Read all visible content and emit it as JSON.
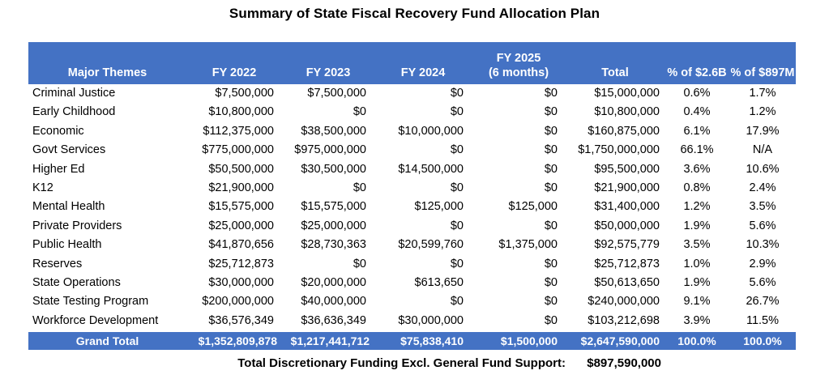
{
  "title": "Summary of State Fiscal Recovery Fund Allocation Plan",
  "colors": {
    "header_blue": "#4472C4",
    "header_text": "#FFFFFF",
    "body_text": "#000000",
    "background": "#FFFFFF"
  },
  "header": {
    "major_themes": "Major Themes",
    "fy2022": "FY 2022",
    "fy2023": "FY 2023",
    "fy2024": "FY 2024",
    "fy2025_line1": "FY 2025",
    "fy2025_line2": "(6 months)",
    "total": "Total",
    "pct_2_6b": "% of $2.6B",
    "pct_897m": "% of $897M"
  },
  "rows": [
    {
      "theme": "Criminal Justice",
      "fy2022": "$7,500,000",
      "fy2023": "$7,500,000",
      "fy2024": "$0",
      "fy2025": "$0",
      "total": "$15,000,000",
      "pct_2_6b": "0.6%",
      "pct_897m": "1.7%"
    },
    {
      "theme": "Early Childhood",
      "fy2022": "$10,800,000",
      "fy2023": "$0",
      "fy2024": "$0",
      "fy2025": "$0",
      "total": "$10,800,000",
      "pct_2_6b": "0.4%",
      "pct_897m": "1.2%"
    },
    {
      "theme": "Economic",
      "fy2022": "$112,375,000",
      "fy2023": "$38,500,000",
      "fy2024": "$10,000,000",
      "fy2025": "$0",
      "total": "$160,875,000",
      "pct_2_6b": "6.1%",
      "pct_897m": "17.9%"
    },
    {
      "theme": "Govt Services",
      "fy2022": "$775,000,000",
      "fy2023": "$975,000,000",
      "fy2024": "$0",
      "fy2025": "$0",
      "total": "$1,750,000,000",
      "pct_2_6b": "66.1%",
      "pct_897m": "N/A"
    },
    {
      "theme": "Higher Ed",
      "fy2022": "$50,500,000",
      "fy2023": "$30,500,000",
      "fy2024": "$14,500,000",
      "fy2025": "$0",
      "total": "$95,500,000",
      "pct_2_6b": "3.6%",
      "pct_897m": "10.6%"
    },
    {
      "theme": "K12",
      "fy2022": "$21,900,000",
      "fy2023": "$0",
      "fy2024": "$0",
      "fy2025": "$0",
      "total": "$21,900,000",
      "pct_2_6b": "0.8%",
      "pct_897m": "2.4%"
    },
    {
      "theme": "Mental Health",
      "fy2022": "$15,575,000",
      "fy2023": "$15,575,000",
      "fy2024": "$125,000",
      "fy2025": "$125,000",
      "total": "$31,400,000",
      "pct_2_6b": "1.2%",
      "pct_897m": "3.5%"
    },
    {
      "theme": "Private Providers",
      "fy2022": "$25,000,000",
      "fy2023": "$25,000,000",
      "fy2024": "$0",
      "fy2025": "$0",
      "total": "$50,000,000",
      "pct_2_6b": "1.9%",
      "pct_897m": "5.6%"
    },
    {
      "theme": "Public Health",
      "fy2022": "$41,870,656",
      "fy2023": "$28,730,363",
      "fy2024": "$20,599,760",
      "fy2025": "$1,375,000",
      "total": "$92,575,779",
      "pct_2_6b": "3.5%",
      "pct_897m": "10.3%"
    },
    {
      "theme": "Reserves",
      "fy2022": "$25,712,873",
      "fy2023": "$0",
      "fy2024": "$0",
      "fy2025": "$0",
      "total": "$25,712,873",
      "pct_2_6b": "1.0%",
      "pct_897m": "2.9%"
    },
    {
      "theme": "State Operations",
      "fy2022": "$30,000,000",
      "fy2023": "$20,000,000",
      "fy2024": "$613,650",
      "fy2025": "$0",
      "total": "$50,613,650",
      "pct_2_6b": "1.9%",
      "pct_897m": "5.6%"
    },
    {
      "theme": "State Testing Program",
      "fy2022": "$200,000,000",
      "fy2023": "$40,000,000",
      "fy2024": "$0",
      "fy2025": "$0",
      "total": "$240,000,000",
      "pct_2_6b": "9.1%",
      "pct_897m": "26.7%"
    },
    {
      "theme": "Workforce Development",
      "fy2022": "$36,576,349",
      "fy2023": "$36,636,349",
      "fy2024": "$30,000,000",
      "fy2025": "$0",
      "total": "$103,212,698",
      "pct_2_6b": "3.9%",
      "pct_897m": "11.5%"
    }
  ],
  "grand_total": {
    "label": "Grand Total",
    "fy2022": "$1,352,809,878",
    "fy2023": "$1,217,441,712",
    "fy2024": "$75,838,410",
    "fy2025": "$1,500,000",
    "total": "$2,647,590,000",
    "pct_2_6b": "100.0%",
    "pct_897m": "100.0%"
  },
  "footer": {
    "label": "Total Discretionary Funding Excl. General Fund Support:",
    "value": "$897,590,000"
  },
  "chart_data": {
    "type": "table",
    "title": "Summary of State Fiscal Recovery Fund Allocation Plan",
    "columns": [
      "Major Themes",
      "FY 2022",
      "FY 2023",
      "FY 2024",
      "FY 2025 (6 months)",
      "Total",
      "% of $2.6B",
      "% of $897M"
    ],
    "categories": [
      "Criminal Justice",
      "Early Childhood",
      "Economic",
      "Govt Services",
      "Higher Ed",
      "K12",
      "Mental Health",
      "Private Providers",
      "Public Health",
      "Reserves",
      "State Operations",
      "State Testing Program",
      "Workforce Development"
    ],
    "series": [
      {
        "name": "FY 2022",
        "values": [
          7500000,
          10800000,
          112375000,
          775000000,
          50500000,
          21900000,
          15575000,
          25000000,
          41870656,
          25712873,
          30000000,
          200000000,
          36576349
        ]
      },
      {
        "name": "FY 2023",
        "values": [
          7500000,
          0,
          38500000,
          975000000,
          30500000,
          0,
          15575000,
          25000000,
          28730363,
          0,
          20000000,
          40000000,
          36636349
        ]
      },
      {
        "name": "FY 2024",
        "values": [
          0,
          0,
          10000000,
          0,
          14500000,
          0,
          125000,
          0,
          20599760,
          0,
          613650,
          0,
          30000000
        ]
      },
      {
        "name": "FY 2025 (6 months)",
        "values": [
          0,
          0,
          0,
          0,
          0,
          0,
          125000,
          0,
          1375000,
          0,
          0,
          0,
          0
        ]
      },
      {
        "name": "Total",
        "values": [
          15000000,
          10800000,
          160875000,
          1750000000,
          95500000,
          21900000,
          31400000,
          50000000,
          92575779,
          25712873,
          50613650,
          240000000,
          103212698
        ]
      },
      {
        "name": "% of $2.6B",
        "values": [
          0.6,
          0.4,
          6.1,
          66.1,
          3.6,
          0.8,
          1.2,
          1.9,
          3.5,
          1.0,
          1.9,
          9.1,
          3.9
        ]
      },
      {
        "name": "% of $897M",
        "values": [
          1.7,
          1.2,
          17.9,
          null,
          10.6,
          2.4,
          3.5,
          5.6,
          10.3,
          2.9,
          5.6,
          26.7,
          11.5
        ]
      }
    ],
    "grand_total_row": {
      "label": "Grand Total",
      "values": [
        1352809878,
        1217441712,
        75838410,
        1500000,
        2647590000,
        100.0,
        100.0
      ]
    },
    "footnote": {
      "label": "Total Discretionary Funding Excl. General Fund Support:",
      "value": 897590000
    }
  }
}
